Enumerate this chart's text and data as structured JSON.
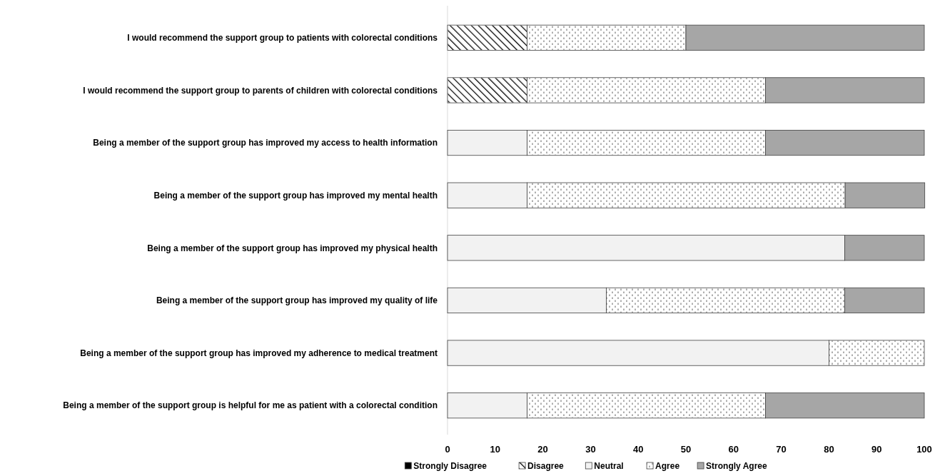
{
  "chart_data": {
    "type": "bar",
    "orientation": "horizontal",
    "stacked": true,
    "categories": [
      "I would recommend the support group to patients with colorectal conditions",
      "I would recommend the support group to parents of children with colorectal conditions",
      "Being a member of the support group has improved my access to health information",
      "Being a member of the support group has improved my mental health",
      "Being a member of the support group has improved my physical health",
      "Being a member of the support group has improved my quality of life",
      "Being a member of the support group has improved my adherence to medical treatment",
      "Being a member of the support group is helpful for me as patient with a colorectal condition"
    ],
    "series": [
      {
        "name": "Strongly Disagree",
        "color": "#000000",
        "values": [
          0,
          0,
          0,
          0,
          0,
          0,
          0,
          0
        ]
      },
      {
        "name": "Disagree",
        "color": "#ffffff",
        "values": [
          16.7,
          16.7,
          0,
          0,
          0,
          0,
          0,
          0
        ]
      },
      {
        "name": "Neutral",
        "color": "#f2f2f2",
        "values": [
          0,
          0,
          16.7,
          16.7,
          83.3,
          33.3,
          80,
          16.7
        ]
      },
      {
        "name": "Agree",
        "color": "#ffffff",
        "values": [
          33.3,
          50,
          50,
          66.7,
          0,
          50,
          20,
          50
        ]
      },
      {
        "name": "Strongly Agree",
        "color": "#a6a6a6",
        "values": [
          50,
          33.3,
          33.3,
          16.7,
          16.7,
          16.7,
          0,
          33.3
        ]
      }
    ],
    "xlim": [
      0,
      100
    ],
    "xticks": [
      0,
      10,
      20,
      30,
      40,
      50,
      60,
      70,
      80,
      90,
      100
    ],
    "grid": false,
    "legend": "bottom"
  }
}
